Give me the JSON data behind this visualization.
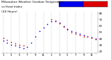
{
  "title": "Milwaukee Weather Outdoor Temperature",
  "subtitle": "vs Heat Index",
  "subtitle3": "(24 Hours)",
  "background": "#ffffff",
  "grid_color": "#888888",
  "x_tick_labels": [
    "1",
    "",
    "3",
    "",
    "5",
    "",
    "7",
    "",
    "9",
    "",
    "11",
    "",
    "1",
    "",
    "3",
    "",
    "5",
    "",
    "7",
    "",
    "9",
    "",
    "11",
    ""
  ],
  "ylim": [
    18,
    82
  ],
  "xlim": [
    -0.5,
    23.5
  ],
  "temp_x": [
    0,
    1,
    2,
    3,
    4,
    5,
    6,
    7,
    8,
    9,
    10,
    11,
    12,
    13,
    14,
    15,
    16,
    17,
    18,
    19,
    20,
    21,
    22,
    23
  ],
  "temp_y": [
    37,
    34,
    31,
    29,
    27,
    25,
    27,
    34,
    43,
    52,
    58,
    63,
    67,
    68,
    65,
    60,
    55,
    52,
    50,
    48,
    46,
    44,
    42,
    40
  ],
  "heat_x": [
    0,
    1,
    2,
    3,
    4,
    5,
    12,
    13,
    14,
    15,
    16,
    17,
    18,
    19,
    20,
    21,
    22,
    23
  ],
  "heat_y": [
    41,
    38,
    35,
    33,
    31,
    29,
    70,
    67,
    64,
    59,
    54,
    50,
    48,
    46,
    44,
    43,
    41,
    39
  ],
  "temp_color": "#0000ee",
  "heat_color": "#dd0000",
  "dot_size": 1.5,
  "title_fontsize": 3.2,
  "tick_fontsize": 2.8,
  "y_ticks": [
    20,
    30,
    40,
    50,
    60,
    70,
    80
  ],
  "legend_bar_blue": "#0000ee",
  "legend_bar_red": "#dd0000"
}
